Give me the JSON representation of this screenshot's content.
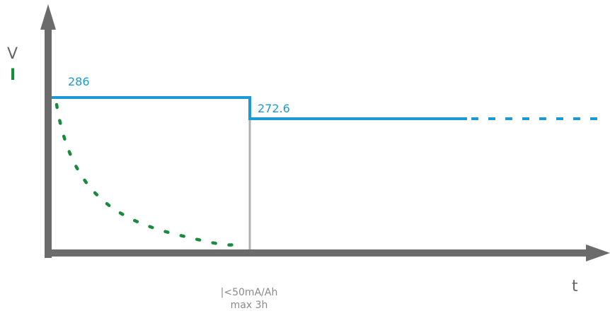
{
  "chart_data": {
    "type": "line",
    "xlabel": "t",
    "ylabels": [
      "V",
      "I"
    ],
    "series": [
      {
        "name": "V",
        "style": "solid then dotted",
        "color": "#1a9ad6",
        "points": [
          {
            "phase": 1,
            "value": 286
          },
          {
            "phase": 2,
            "value": 272.6
          }
        ]
      },
      {
        "name": "I",
        "style": "dotted decaying curve",
        "color": "#1a8a3c"
      }
    ],
    "data_labels": [
      "286",
      "272.6"
    ],
    "annotation": [
      "|<50mA/Ah",
      "max 3h"
    ],
    "colors": {
      "axis": "#6b6b6b",
      "voltage": "#1a9ad6",
      "current": "#1a8a3c",
      "divider": "#b0b0b0",
      "annotation": "#8a8a8a"
    }
  }
}
